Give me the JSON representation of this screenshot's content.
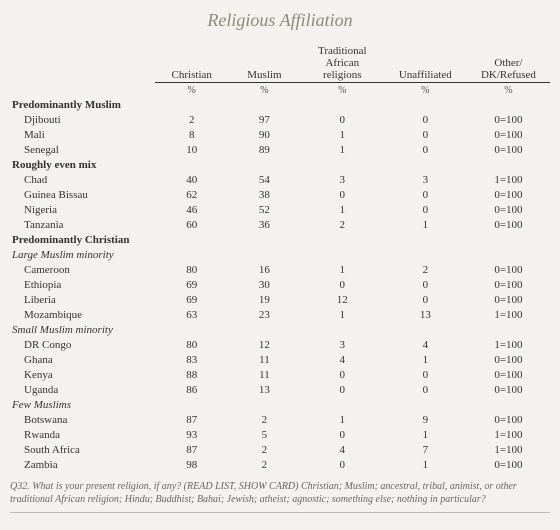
{
  "title": "Religious Affiliation",
  "columns": [
    "Christian",
    "Muslim",
    "Traditional\nAfrican\nreligions",
    "Unaffiliated",
    "Other/\nDK/Refused"
  ],
  "pct_symbol": "%",
  "sections": [
    {
      "header": "Predominantly Muslim",
      "rows": [
        {
          "name": "Djibouti",
          "vals": [
            "2",
            "97",
            "0",
            "0",
            "0=100"
          ]
        },
        {
          "name": "Mali",
          "vals": [
            "8",
            "90",
            "1",
            "0",
            "0=100"
          ]
        },
        {
          "name": "Senegal",
          "vals": [
            "10",
            "89",
            "1",
            "0",
            "0=100"
          ]
        }
      ]
    },
    {
      "header": "Roughly even mix",
      "rows": [
        {
          "name": "Chad",
          "vals": [
            "40",
            "54",
            "3",
            "3",
            "1=100"
          ]
        },
        {
          "name": "Guinea Bissau",
          "vals": [
            "62",
            "38",
            "0",
            "0",
            "0=100"
          ]
        },
        {
          "name": "Nigeria",
          "vals": [
            "46",
            "52",
            "1",
            "0",
            "0=100"
          ]
        },
        {
          "name": "Tanzania",
          "vals": [
            "60",
            "36",
            "2",
            "1",
            "0=100"
          ]
        }
      ]
    },
    {
      "header": "Predominantly Christian",
      "subgroups": [
        {
          "sub": "Large Muslim minority",
          "rows": [
            {
              "name": "Cameroon",
              "vals": [
                "80",
                "16",
                "1",
                "2",
                "0=100"
              ]
            },
            {
              "name": "Ethiopia",
              "vals": [
                "69",
                "30",
                "0",
                "0",
                "0=100"
              ]
            },
            {
              "name": "Liberia",
              "vals": [
                "69",
                "19",
                "12",
                "0",
                "0=100"
              ]
            },
            {
              "name": "Mozambique",
              "vals": [
                "63",
                "23",
                "1",
                "13",
                "1=100"
              ]
            }
          ]
        },
        {
          "sub": "Small Muslim minority",
          "rows": [
            {
              "name": "DR Congo",
              "vals": [
                "80",
                "12",
                "3",
                "4",
                "1=100"
              ]
            },
            {
              "name": "Ghana",
              "vals": [
                "83",
                "11",
                "4",
                "1",
                "0=100"
              ]
            },
            {
              "name": "Kenya",
              "vals": [
                "88",
                "11",
                "0",
                "0",
                "0=100"
              ]
            },
            {
              "name": "Uganda",
              "vals": [
                "86",
                "13",
                "0",
                "0",
                "0=100"
              ]
            }
          ]
        },
        {
          "sub": "Few Muslims",
          "rows": [
            {
              "name": "Botswana",
              "vals": [
                "87",
                "2",
                "1",
                "9",
                "0=100"
              ]
            },
            {
              "name": "Rwanda",
              "vals": [
                "93",
                "5",
                "0",
                "1",
                "1=100"
              ]
            },
            {
              "name": "South Africa",
              "vals": [
                "87",
                "2",
                "4",
                "7",
                "1=100"
              ]
            },
            {
              "name": "Zambia",
              "vals": [
                "98",
                "2",
                "0",
                "1",
                "0=100"
              ]
            }
          ]
        }
      ]
    }
  ],
  "footnote": "Q32. What is your present religion, if any? (READ LIST, SHOW CARD) Christian; Muslim; ancestral, tribal, animist, or other traditional African religion; Hindu; Buddhist; Bahai; Jewish; atheist; agnostic; something else; nothing in particular?",
  "colors": {
    "background": "#f3f2ee",
    "title": "#8a8a7a",
    "text": "#333333",
    "foot": "#666666"
  }
}
